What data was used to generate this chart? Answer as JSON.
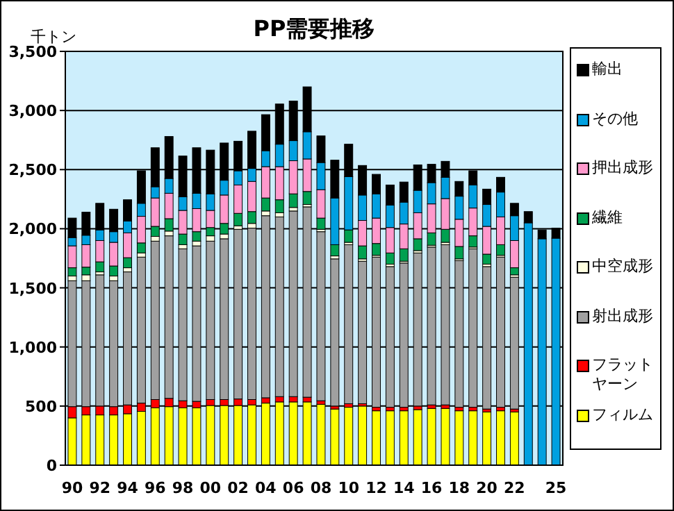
{
  "chart_data": {
    "type": "bar",
    "stacked": true,
    "title": "PP需要推移",
    "ylabel": "千トン",
    "categories": [
      "90",
      null,
      "92",
      null,
      "94",
      null,
      "96",
      null,
      "98",
      null,
      "00",
      null,
      "02",
      null,
      "04",
      null,
      "06",
      null,
      "08",
      null,
      "10",
      null,
      "12",
      null,
      "14",
      null,
      "16",
      null,
      "18",
      null,
      "20",
      null,
      "22",
      null,
      null,
      "25"
    ],
    "ylim": [
      0,
      3500
    ],
    "yticks": [
      0,
      {
        "value": 500,
        "label": "500"
      },
      {
        "value": 1000,
        "label": "1,000"
      },
      {
        "value": 1500,
        "label": "1,500"
      },
      {
        "value": 2000,
        "label": "2,000"
      },
      {
        "value": 2500,
        "label": "2,500"
      },
      {
        "value": 3000,
        "label": "3,000"
      },
      {
        "value": 3500,
        "label": "3,500"
      }
    ],
    "grid": "y",
    "legend": "right",
    "series": [
      {
        "name": "フィルム",
        "color": "#ffff00",
        "values": [
          400,
          425,
          425,
          425,
          435,
          455,
          485,
          495,
          485,
          485,
          505,
          505,
          505,
          510,
          525,
          535,
          535,
          535,
          515,
          475,
          490,
          500,
          460,
          460,
          460,
          470,
          480,
          480,
          460,
          460,
          450,
          460,
          450,
          null,
          null,
          null
        ]
      },
      {
        "name": "フラットヤーン",
        "color": "#ff0000",
        "values": [
          95,
          70,
          75,
          70,
          75,
          70,
          70,
          70,
          60,
          55,
          50,
          50,
          55,
          45,
          45,
          45,
          45,
          40,
          30,
          25,
          30,
          20,
          30,
          30,
          30,
          30,
          30,
          30,
          30,
          30,
          25,
          30,
          25,
          null,
          null,
          null
        ]
      },
      {
        "name": "射出成形",
        "color": "#a0a0a0",
        "values": [
          1065,
          1065,
          1110,
          1065,
          1125,
          1235,
          1340,
          1375,
          1285,
          1315,
          1340,
          1360,
          1435,
          1450,
          1540,
          1520,
          1570,
          1610,
          1430,
          1245,
          1345,
          1205,
          1270,
          1190,
          1220,
          1295,
          1335,
          1355,
          1240,
          1340,
          1205,
          1270,
          1115,
          null,
          null,
          null
        ]
      },
      {
        "name": "中空成形",
        "color": "#ffffe0",
        "values": [
          40,
          50,
          25,
          40,
          35,
          35,
          40,
          40,
          35,
          40,
          45,
          40,
          30,
          40,
          40,
          35,
          30,
          20,
          20,
          25,
          20,
          20,
          15,
          20,
          15,
          20,
          15,
          20,
          15,
          15,
          20,
          15,
          20,
          null,
          null,
          null
        ]
      },
      {
        "name": "繊維",
        "color": "#00a050",
        "values": [
          70,
          65,
          85,
          85,
          85,
          85,
          85,
          105,
          90,
          80,
          70,
          90,
          105,
          100,
          110,
          110,
          115,
          110,
          95,
          95,
          105,
          110,
          100,
          95,
          105,
          100,
          105,
          110,
          105,
          95,
          85,
          90,
          60,
          null,
          null,
          null
        ]
      },
      {
        "name": "押出成形",
        "color": "#ff99cc",
        "values": [
          185,
          190,
          180,
          200,
          210,
          225,
          240,
          215,
          200,
          195,
          145,
          240,
          240,
          255,
          265,
          280,
          280,
          275,
          240,
          null,
          null,
          215,
          215,
          215,
          210,
          220,
          245,
          260,
          230,
          235,
          235,
          235,
          230,
          null,
          null,
          null
        ]
      },
      {
        "name": "その他",
        "color": "#00a0e0",
        "values": [
          70,
          80,
          90,
          90,
          100,
          110,
          95,
          125,
          115,
          130,
          140,
          125,
          120,
          110,
          135,
          190,
          170,
          230,
          230,
          395,
          450,
          215,
          205,
          190,
          185,
          190,
          180,
          180,
          195,
          195,
          185,
          210,
          210,
          2050,
          1915,
          1920
        ]
      },
      {
        "name": "輸出",
        "color": "#000000",
        "values": [
          165,
          195,
          225,
          190,
          180,
          275,
          330,
          355,
          345,
          385,
          370,
          315,
          250,
          315,
          305,
          340,
          335,
          380,
          225,
          320,
          275,
          250,
          165,
          170,
          170,
          215,
          155,
          135,
          125,
          120,
          130,
          125,
          105,
          95,
          75,
          85
        ]
      }
    ]
  }
}
